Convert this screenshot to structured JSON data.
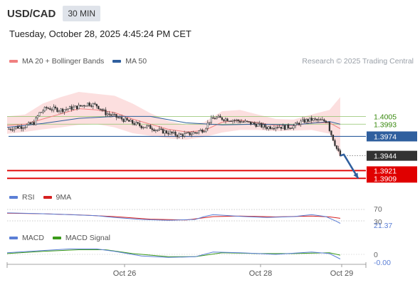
{
  "header": {
    "symbol": "USD/CAD",
    "timeframe": "30 MIN",
    "datetime": "Tuesday, October 28, 2025 4:45:24 PM CET"
  },
  "legend_main": [
    {
      "label": "MA 20 + Bollinger Bands",
      "color": "#f08080"
    },
    {
      "label": "MA 50",
      "color": "#2f5f9e"
    }
  ],
  "credit": "Research © 2025 Trading Central",
  "legend_rsi": [
    {
      "label": "RSI",
      "color": "#5b7fd6"
    },
    {
      "label": "9MA",
      "color": "#d62020"
    }
  ],
  "legend_macd": [
    {
      "label": "MACD",
      "color": "#5b7fd6"
    },
    {
      "label": "MACD Signal",
      "color": "#3a9a1a"
    }
  ],
  "colors": {
    "up_candle": "#ffffff",
    "down_candle": "#333333",
    "band_fill": "#fbd9d9",
    "ma20": "#f08080",
    "ma50": "#2f5f9e",
    "resistance": "#8fc26a",
    "pivot": "#2f5f9e",
    "support": "#e00000",
    "current": "#333333",
    "arrow": "#2f5f9e"
  },
  "chart_data": {
    "type": "candlestick",
    "x_tick_labels": [
      "Oct 26",
      "Oct 28",
      "Oct 29"
    ],
    "ylim": [
      1.3895,
      1.4075
    ],
    "levels": [
      {
        "value": 1.4005,
        "label": "1.4005",
        "kind": "resistance"
      },
      {
        "value": 1.3993,
        "label": "1.3993",
        "kind": "resistance"
      },
      {
        "value": 1.3974,
        "label": "1.3974",
        "kind": "pivot"
      },
      {
        "value": 1.3944,
        "label": "1.3944",
        "kind": "current"
      },
      {
        "value": 1.3921,
        "label": "1.3921",
        "kind": "support"
      },
      {
        "value": 1.3909,
        "label": "1.3909",
        "kind": "support"
      }
    ],
    "price_path": [
      [
        0,
        1.3985
      ],
      [
        5,
        1.3988
      ],
      [
        10,
        1.399
      ],
      [
        15,
        1.3995
      ],
      [
        18,
        1.401
      ],
      [
        22,
        1.4018
      ],
      [
        30,
        1.4015
      ],
      [
        40,
        1.402
      ],
      [
        45,
        1.4025
      ],
      [
        50,
        1.4022
      ],
      [
        55,
        1.401
      ],
      [
        60,
        1.4005
      ],
      [
        65,
        1.4
      ],
      [
        70,
        1.3995
      ],
      [
        75,
        1.399
      ],
      [
        80,
        1.3988
      ],
      [
        85,
        1.3983
      ],
      [
        90,
        1.398
      ],
      [
        95,
        1.3976
      ],
      [
        100,
        1.3977
      ],
      [
        105,
        1.398
      ],
      [
        110,
        1.3985
      ],
      [
        113,
        1.3998
      ],
      [
        116,
        1.4003
      ],
      [
        125,
        1.4
      ],
      [
        135,
        1.3995
      ],
      [
        140,
        1.3992
      ],
      [
        145,
        1.3988
      ],
      [
        150,
        1.399
      ],
      [
        155,
        1.3988
      ],
      [
        160,
        1.399
      ],
      [
        163,
        1.3995
      ],
      [
        166,
        1.3998
      ],
      [
        170,
        1.4
      ],
      [
        175,
        1.3998
      ],
      [
        179,
        1.3998
      ],
      [
        180,
        1.3985
      ],
      [
        182,
        1.397
      ],
      [
        184,
        1.3955
      ],
      [
        186,
        1.3944
      ]
    ],
    "ma20": [
      [
        0,
        1.3991
      ],
      [
        10,
        1.3993
      ],
      [
        20,
        1.4001
      ],
      [
        30,
        1.4009
      ],
      [
        40,
        1.4017
      ],
      [
        50,
        1.4015
      ],
      [
        60,
        1.4011
      ],
      [
        70,
        1.4001
      ],
      [
        80,
        1.3993
      ],
      [
        90,
        1.3985
      ],
      [
        100,
        1.3981
      ],
      [
        110,
        1.3983
      ],
      [
        120,
        1.3996
      ],
      [
        130,
        1.3999
      ],
      [
        140,
        1.3995
      ],
      [
        150,
        1.3991
      ],
      [
        160,
        1.3991
      ],
      [
        170,
        1.3995
      ],
      [
        180,
        1.3995
      ],
      [
        186,
        1.3986
      ]
    ],
    "ma50": [
      [
        0,
        1.3988
      ],
      [
        20,
        1.3994
      ],
      [
        40,
        1.4002
      ],
      [
        60,
        1.4005
      ],
      [
        80,
        1.4005
      ],
      [
        100,
        1.3995
      ],
      [
        120,
        1.3992
      ],
      [
        140,
        1.3993
      ],
      [
        160,
        1.3992
      ],
      [
        180,
        1.3997
      ],
      [
        186,
        1.3993
      ]
    ],
    "bb_upper": [
      [
        0,
        1.4005
      ],
      [
        10,
        1.4008
      ],
      [
        20,
        1.4025
      ],
      [
        30,
        1.4035
      ],
      [
        40,
        1.4043
      ],
      [
        50,
        1.404
      ],
      [
        60,
        1.4037
      ],
      [
        70,
        1.4025
      ],
      [
        80,
        1.401
      ],
      [
        90,
        1.3998
      ],
      [
        100,
        1.3992
      ],
      [
        110,
        1.3996
      ],
      [
        120,
        1.4013
      ],
      [
        130,
        1.4015
      ],
      [
        140,
        1.4008
      ],
      [
        150,
        1.4001
      ],
      [
        160,
        1.4
      ],
      [
        170,
        1.4008
      ],
      [
        180,
        1.4015
      ],
      [
        186,
        1.4035
      ]
    ],
    "bb_lower": [
      [
        0,
        1.3978
      ],
      [
        10,
        1.3981
      ],
      [
        20,
        1.3985
      ],
      [
        30,
        1.3988
      ],
      [
        40,
        1.3992
      ],
      [
        50,
        1.3993
      ],
      [
        60,
        1.3988
      ],
      [
        70,
        1.3979
      ],
      [
        80,
        1.3975
      ],
      [
        90,
        1.3971
      ],
      [
        100,
        1.3969
      ],
      [
        110,
        1.3973
      ],
      [
        120,
        1.398
      ],
      [
        130,
        1.3984
      ],
      [
        140,
        1.3984
      ],
      [
        150,
        1.3982
      ],
      [
        160,
        1.3983
      ],
      [
        170,
        1.3984
      ],
      [
        180,
        1.3978
      ],
      [
        186,
        1.394
      ]
    ],
    "forecast_arrow": [
      [
        186,
        1.3944
      ],
      [
        188,
        1.3946
      ],
      [
        196,
        1.3909
      ]
    ],
    "rsi": {
      "label_values": [
        "70",
        "30",
        "21.37"
      ],
      "levels": [
        70,
        30
      ],
      "current": 21.37,
      "ylim": [
        10,
        90
      ],
      "rsi_path": [
        [
          0,
          58
        ],
        [
          20,
          55
        ],
        [
          35,
          52
        ],
        [
          50,
          48
        ],
        [
          60,
          42
        ],
        [
          75,
          35
        ],
        [
          90,
          32
        ],
        [
          105,
          35
        ],
        [
          110,
          45
        ],
        [
          115,
          52
        ],
        [
          130,
          46
        ],
        [
          145,
          42
        ],
        [
          160,
          45
        ],
        [
          170,
          52
        ],
        [
          178,
          45
        ],
        [
          184,
          28
        ],
        [
          186,
          21.37
        ]
      ],
      "ma_path": [
        [
          0,
          57
        ],
        [
          20,
          55
        ],
        [
          40,
          51
        ],
        [
          60,
          45
        ],
        [
          80,
          36
        ],
        [
          100,
          33
        ],
        [
          115,
          45
        ],
        [
          130,
          47
        ],
        [
          150,
          44
        ],
        [
          170,
          47
        ],
        [
          180,
          44
        ],
        [
          186,
          39
        ]
      ]
    },
    "macd": {
      "label_values": [
        "0",
        "-0.00"
      ],
      "ylim": [
        -0.0012,
        0.0012
      ],
      "macd_path": [
        [
          0,
          0.0002
        ],
        [
          20,
          0.0005
        ],
        [
          35,
          0.0007
        ],
        [
          50,
          0.0007
        ],
        [
          60,
          0.0004
        ],
        [
          75,
          -0.0002
        ],
        [
          90,
          -0.0004
        ],
        [
          105,
          -0.0003
        ],
        [
          115,
          0.0003
        ],
        [
          130,
          0.0002
        ],
        [
          150,
          0.0
        ],
        [
          170,
          0.0003
        ],
        [
          180,
          0.0001
        ],
        [
          186,
          -0.0006
        ]
      ],
      "signal_path": [
        [
          0,
          0.0001
        ],
        [
          20,
          0.0004
        ],
        [
          40,
          0.0006
        ],
        [
          55,
          0.0006
        ],
        [
          70,
          0.0001
        ],
        [
          90,
          -0.0003
        ],
        [
          105,
          -0.0003
        ],
        [
          120,
          0.0002
        ],
        [
          140,
          0.0001
        ],
        [
          160,
          0.0001
        ],
        [
          180,
          0.0002
        ],
        [
          186,
          -0.0001
        ]
      ]
    }
  }
}
